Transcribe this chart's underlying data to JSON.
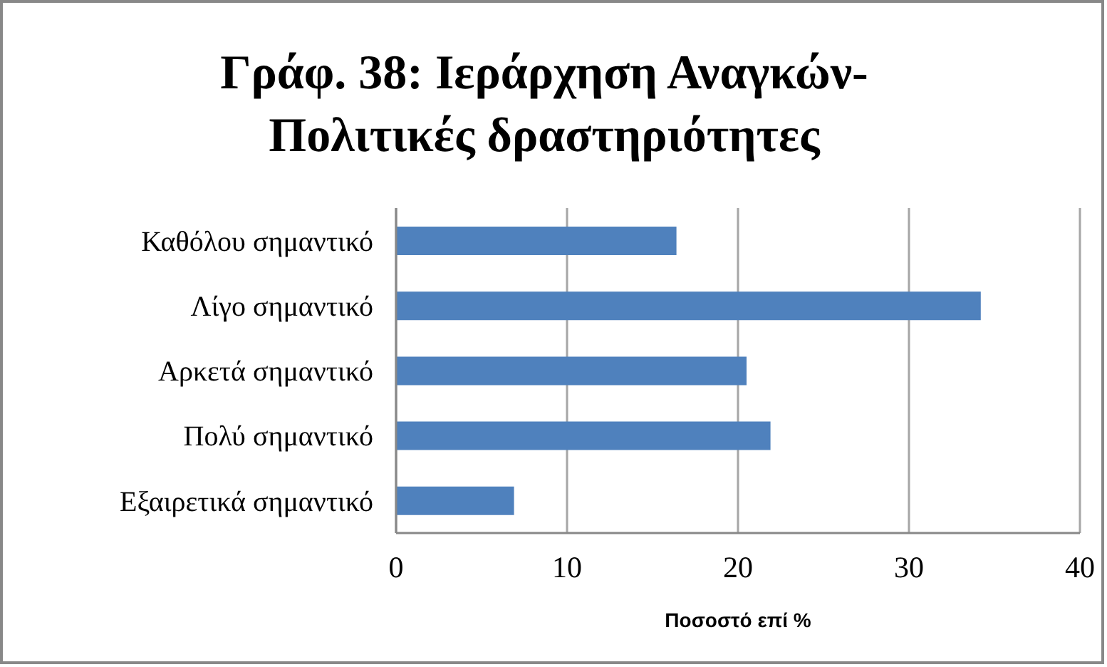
{
  "chart_data": {
    "type": "bar",
    "orientation": "horizontal",
    "title": "Γράφ. 38: Ιεράρχηση Αναγκών-Πολιτικές δραστηριότητες",
    "xlabel": "Ποσοστό επί %",
    "categories": [
      "Καθόλου σημαντικό",
      "Λίγο σημαντικό",
      "Αρκετά σημαντικό",
      "Πολύ σημαντικό",
      "Εξαιρετικά σημαντικό"
    ],
    "values": [
      16.4,
      34.2,
      20.5,
      21.9,
      6.9
    ],
    "color": "#4f81bd",
    "xlim": [
      0,
      40
    ],
    "xticks": [
      0,
      10,
      20,
      30,
      40
    ],
    "grid": "x",
    "legend": false
  }
}
